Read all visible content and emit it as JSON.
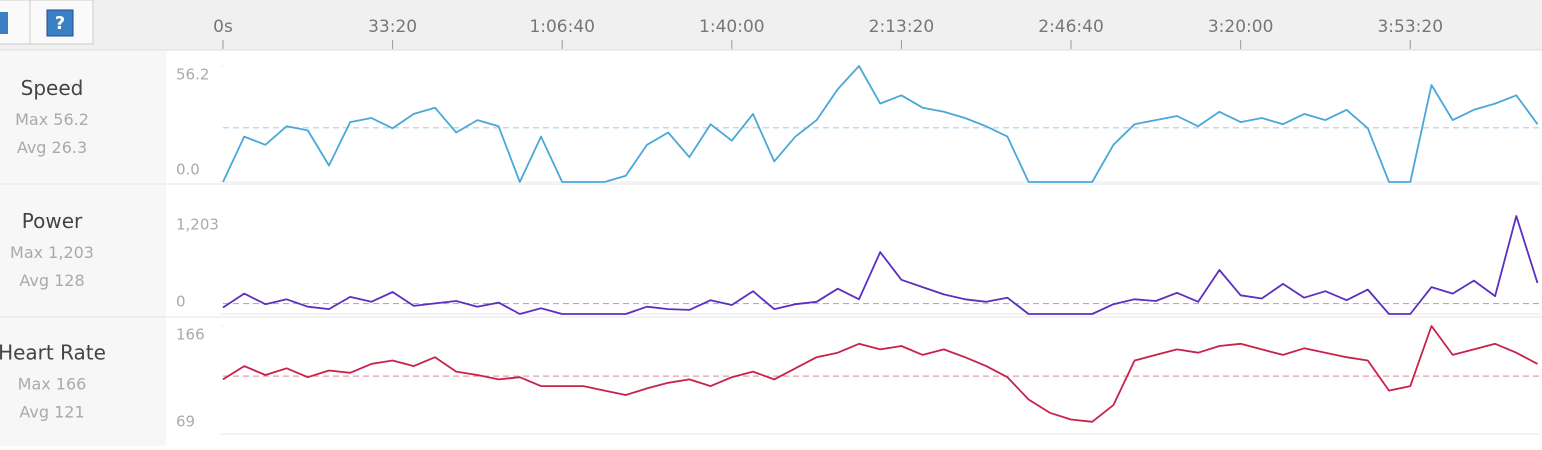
{
  "toolbar": {
    "help_icon": "?"
  },
  "chart_data": [
    {
      "type": "line",
      "title": "Speed",
      "max_text": "Max 56.2",
      "avg": {
        "value": 26.3,
        "label": "Avg 26.3"
      },
      "color": "#4aa8d8",
      "xlim": [
        0,
        15530
      ],
      "xticks": [
        {
          "value": 0,
          "label": "0s"
        },
        {
          "value": 2000,
          "label": "33:20"
        },
        {
          "value": 4000,
          "label": "1:06:40"
        },
        {
          "value": 6000,
          "label": "1:40:00"
        },
        {
          "value": 8000,
          "label": "2:13:20"
        },
        {
          "value": 10000,
          "label": "2:46:40"
        },
        {
          "value": 12000,
          "label": "3:20:00"
        },
        {
          "value": 14000,
          "label": "3:53:20"
        }
      ],
      "ylim": [
        0,
        56.2
      ],
      "yticks": [
        {
          "value": 0,
          "label": "0.0"
        },
        56.2
      ],
      "x": [
        0,
        250,
        500,
        750,
        1000,
        1250,
        1500,
        1750,
        2000,
        2250,
        2500,
        2750,
        3000,
        3250,
        3500,
        3750,
        4000,
        4250,
        4500,
        4750,
        5000,
        5250,
        5500,
        5750,
        6000,
        6250,
        6500,
        6750,
        7000,
        7250,
        7500,
        7750,
        8000,
        8250,
        8500,
        8750,
        9000,
        9250,
        9500,
        9750,
        10000,
        10250,
        10500,
        10750,
        11000,
        11250,
        11500,
        11750,
        12000,
        12250,
        12500,
        12750,
        13000,
        13250,
        13500,
        13750,
        14000,
        14250,
        14500,
        14750,
        15000,
        15250,
        15500
      ],
      "values": [
        0,
        22,
        18,
        27,
        25,
        8,
        29,
        31,
        26,
        33,
        36,
        24,
        30,
        27,
        0,
        22,
        0,
        0,
        0,
        3,
        18,
        24,
        12,
        28,
        20,
        33,
        10,
        22,
        30,
        45,
        56.2,
        38,
        42,
        36,
        34,
        31,
        27,
        22,
        0,
        0,
        0,
        0,
        18,
        28,
        30,
        32,
        27,
        34,
        29,
        31,
        28,
        33,
        30,
        35,
        26,
        0,
        0,
        47,
        30,
        35,
        38,
        42,
        28
      ]
    },
    {
      "type": "line",
      "title": "Power",
      "max_text": "Max 1,203",
      "avg": {
        "value": 128,
        "label": "Avg 128"
      },
      "color": "#5b2fc0",
      "xlim": [
        0,
        15530
      ],
      "ylim": [
        0,
        1203
      ],
      "yticks": [
        0,
        {
          "value": 1203,
          "label": "1,203"
        }
      ],
      "x": [
        0,
        250,
        500,
        750,
        1000,
        1250,
        1500,
        1750,
        2000,
        2250,
        2500,
        2750,
        3000,
        3250,
        3500,
        3750,
        4000,
        4250,
        4500,
        4750,
        5000,
        5250,
        5500,
        5750,
        6000,
        6250,
        6500,
        6750,
        7000,
        7250,
        7500,
        7750,
        8000,
        8250,
        8500,
        8750,
        9000,
        9250,
        9500,
        9750,
        10000,
        10250,
        10500,
        10750,
        11000,
        11250,
        11500,
        11750,
        12000,
        12250,
        12500,
        12750,
        13000,
        13250,
        13500,
        13750,
        14000,
        14250,
        14500,
        14750,
        15000,
        15250,
        15500
      ],
      "values": [
        80,
        250,
        120,
        180,
        90,
        60,
        210,
        150,
        270,
        100,
        130,
        160,
        90,
        140,
        0,
        70,
        0,
        0,
        0,
        0,
        90,
        60,
        50,
        170,
        110,
        280,
        60,
        120,
        150,
        310,
        180,
        760,
        420,
        330,
        240,
        180,
        150,
        200,
        0,
        0,
        0,
        0,
        120,
        180,
        160,
        260,
        150,
        540,
        230,
        190,
        370,
        200,
        280,
        170,
        300,
        0,
        0,
        330,
        250,
        410,
        220,
        1203,
        380
      ]
    },
    {
      "type": "line",
      "title": "Heart Rate",
      "max_text": "Max 166",
      "avg": {
        "value": 121,
        "label": "Avg 121"
      },
      "color": "#c8214a",
      "xlim": [
        0,
        15530
      ],
      "ylim": [
        69,
        166
      ],
      "yticks": [
        69,
        166
      ],
      "x": [
        0,
        250,
        500,
        750,
        1000,
        1250,
        1500,
        1750,
        2000,
        2250,
        2500,
        2750,
        3000,
        3250,
        3500,
        3750,
        4000,
        4250,
        4500,
        4750,
        5000,
        5250,
        5500,
        5750,
        6000,
        6250,
        6500,
        6750,
        7000,
        7250,
        7500,
        7750,
        8000,
        8250,
        8500,
        8750,
        9000,
        9250,
        9500,
        9750,
        10000,
        10250,
        10500,
        10750,
        11000,
        11250,
        11500,
        11750,
        12000,
        12250,
        12500,
        12750,
        13000,
        13250,
        13500,
        13750,
        14000,
        14250,
        14500,
        14750,
        15000,
        15250,
        15500
      ],
      "values": [
        118,
        130,
        122,
        128,
        120,
        126,
        124,
        132,
        135,
        130,
        138,
        125,
        122,
        118,
        120,
        112,
        112,
        112,
        108,
        104,
        110,
        115,
        118,
        112,
        120,
        125,
        118,
        128,
        138,
        142,
        150,
        145,
        148,
        140,
        145,
        138,
        130,
        120,
        100,
        88,
        82,
        80,
        95,
        135,
        140,
        145,
        142,
        148,
        150,
        145,
        140,
        146,
        142,
        138,
        135,
        108,
        112,
        166,
        140,
        145,
        150,
        142,
        132
      ]
    }
  ]
}
